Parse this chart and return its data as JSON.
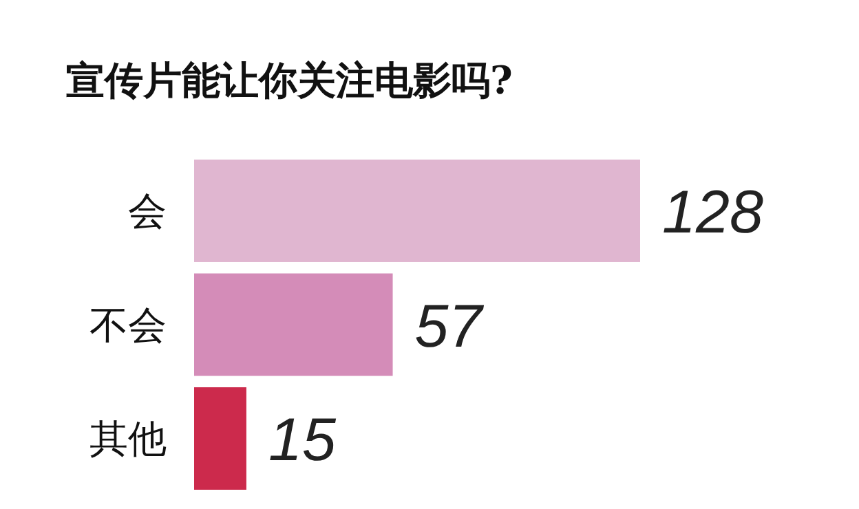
{
  "chart_data": {
    "type": "bar",
    "orientation": "horizontal",
    "title": "宣传片能让你关注电影吗?",
    "categories": [
      "会",
      "不会",
      "其他"
    ],
    "values": [
      128,
      57,
      15
    ],
    "colors": [
      "#e0b6d0",
      "#d48cb8",
      "#cc2a4c"
    ],
    "data_labels": true
  }
}
